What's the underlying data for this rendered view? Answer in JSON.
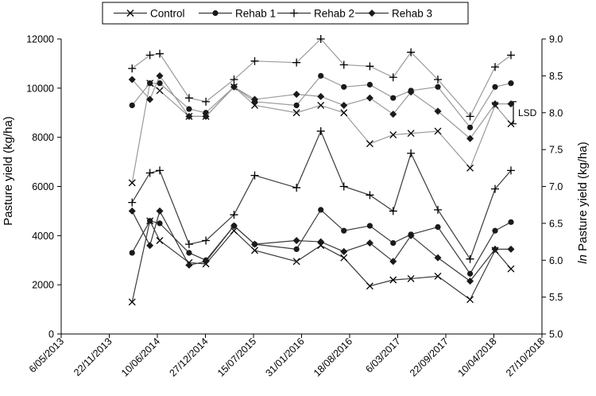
{
  "chart_data": {
    "type": "line",
    "ylabel": "Pasture yield (kg/ha)",
    "y2label_italic": "ln",
    "y2label_rest": " Pasture yield (kg/ha)",
    "ylim": [
      0,
      12000
    ],
    "y2lim": [
      5.0,
      9.0
    ],
    "yticks": [
      0,
      2000,
      4000,
      6000,
      8000,
      10000,
      12000
    ],
    "y2ticks": [
      "5.0",
      "5.5",
      "6.0",
      "6.5",
      "7.0",
      "7.5",
      "8.0",
      "8.5",
      "9.0"
    ],
    "xtick_labels": [
      "6/05/2013",
      "22/11/2013",
      "10/06/2014",
      "27/12/2014",
      "15/07/2015",
      "31/01/2016",
      "18/08/2016",
      "6/03/2017",
      "22/09/2017",
      "10/04/2018",
      "27/10/2018"
    ],
    "annotation": "LSD",
    "lsd_bar": [
      7.85,
      8.15
    ],
    "legend": [
      "Control",
      "Rehab 1",
      "Rehab 2",
      "Rehab 3"
    ],
    "x_dates": [
      "2014-02-25",
      "2014-05-10",
      "2014-06-20",
      "2014-10-20",
      "2014-12-29",
      "2015-04-25",
      "2015-07-20",
      "2016-01-10",
      "2016-04-20",
      "2016-07-25",
      "2016-11-10",
      "2017-02-15",
      "2017-04-30",
      "2017-08-20",
      "2018-01-01",
      "2018-04-15",
      "2018-06-20"
    ],
    "series": [
      {
        "name": "Control",
        "marker": "x",
        "y": [
          1300,
          4600,
          3800,
          2900,
          2850,
          4200,
          3400,
          2950,
          3600,
          3100,
          1950,
          2200,
          2250,
          2350,
          1400,
          3400,
          2650
        ],
        "ln": [
          7.05,
          8.4,
          8.3,
          7.95,
          7.95,
          8.35,
          8.1,
          8.0,
          8.1,
          8.0,
          7.58,
          7.7,
          7.72,
          7.75,
          7.25,
          8.1,
          7.85
        ]
      },
      {
        "name": "Rehab 1",
        "marker": "circle",
        "y": [
          3300,
          4600,
          4500,
          3300,
          3000,
          4400,
          3650,
          3450,
          5050,
          4200,
          4400,
          3700,
          4050,
          4350,
          2450,
          4200,
          4550
        ],
        "ln": [
          8.1,
          8.4,
          8.4,
          8.05,
          8.0,
          8.35,
          8.15,
          8.1,
          8.5,
          8.35,
          8.38,
          8.2,
          8.3,
          8.35,
          7.8,
          8.35,
          8.4
        ]
      },
      {
        "name": "Rehab 2",
        "marker": "plus",
        "y": [
          5350,
          6550,
          6650,
          3650,
          3800,
          4850,
          6450,
          5950,
          8250,
          6000,
          5650,
          5000,
          7350,
          5050,
          3050,
          5900,
          6650
        ],
        "ln": [
          8.6,
          8.78,
          8.8,
          8.2,
          8.15,
          8.45,
          8.7,
          8.68,
          9.0,
          8.65,
          8.63,
          8.48,
          8.82,
          8.45,
          7.95,
          8.62,
          8.78
        ]
      },
      {
        "name": "Rehab 3",
        "marker": "diamond",
        "y": [
          5000,
          3600,
          5000,
          2800,
          2950,
          4400,
          3650,
          3800,
          3750,
          3350,
          3700,
          2950,
          4000,
          3100,
          2150,
          3450,
          3450
        ],
        "ln": [
          8.45,
          8.18,
          8.5,
          7.95,
          7.95,
          8.35,
          8.18,
          8.25,
          8.22,
          8.1,
          8.2,
          7.98,
          8.28,
          8.02,
          7.65,
          8.12,
          8.12
        ]
      }
    ]
  }
}
